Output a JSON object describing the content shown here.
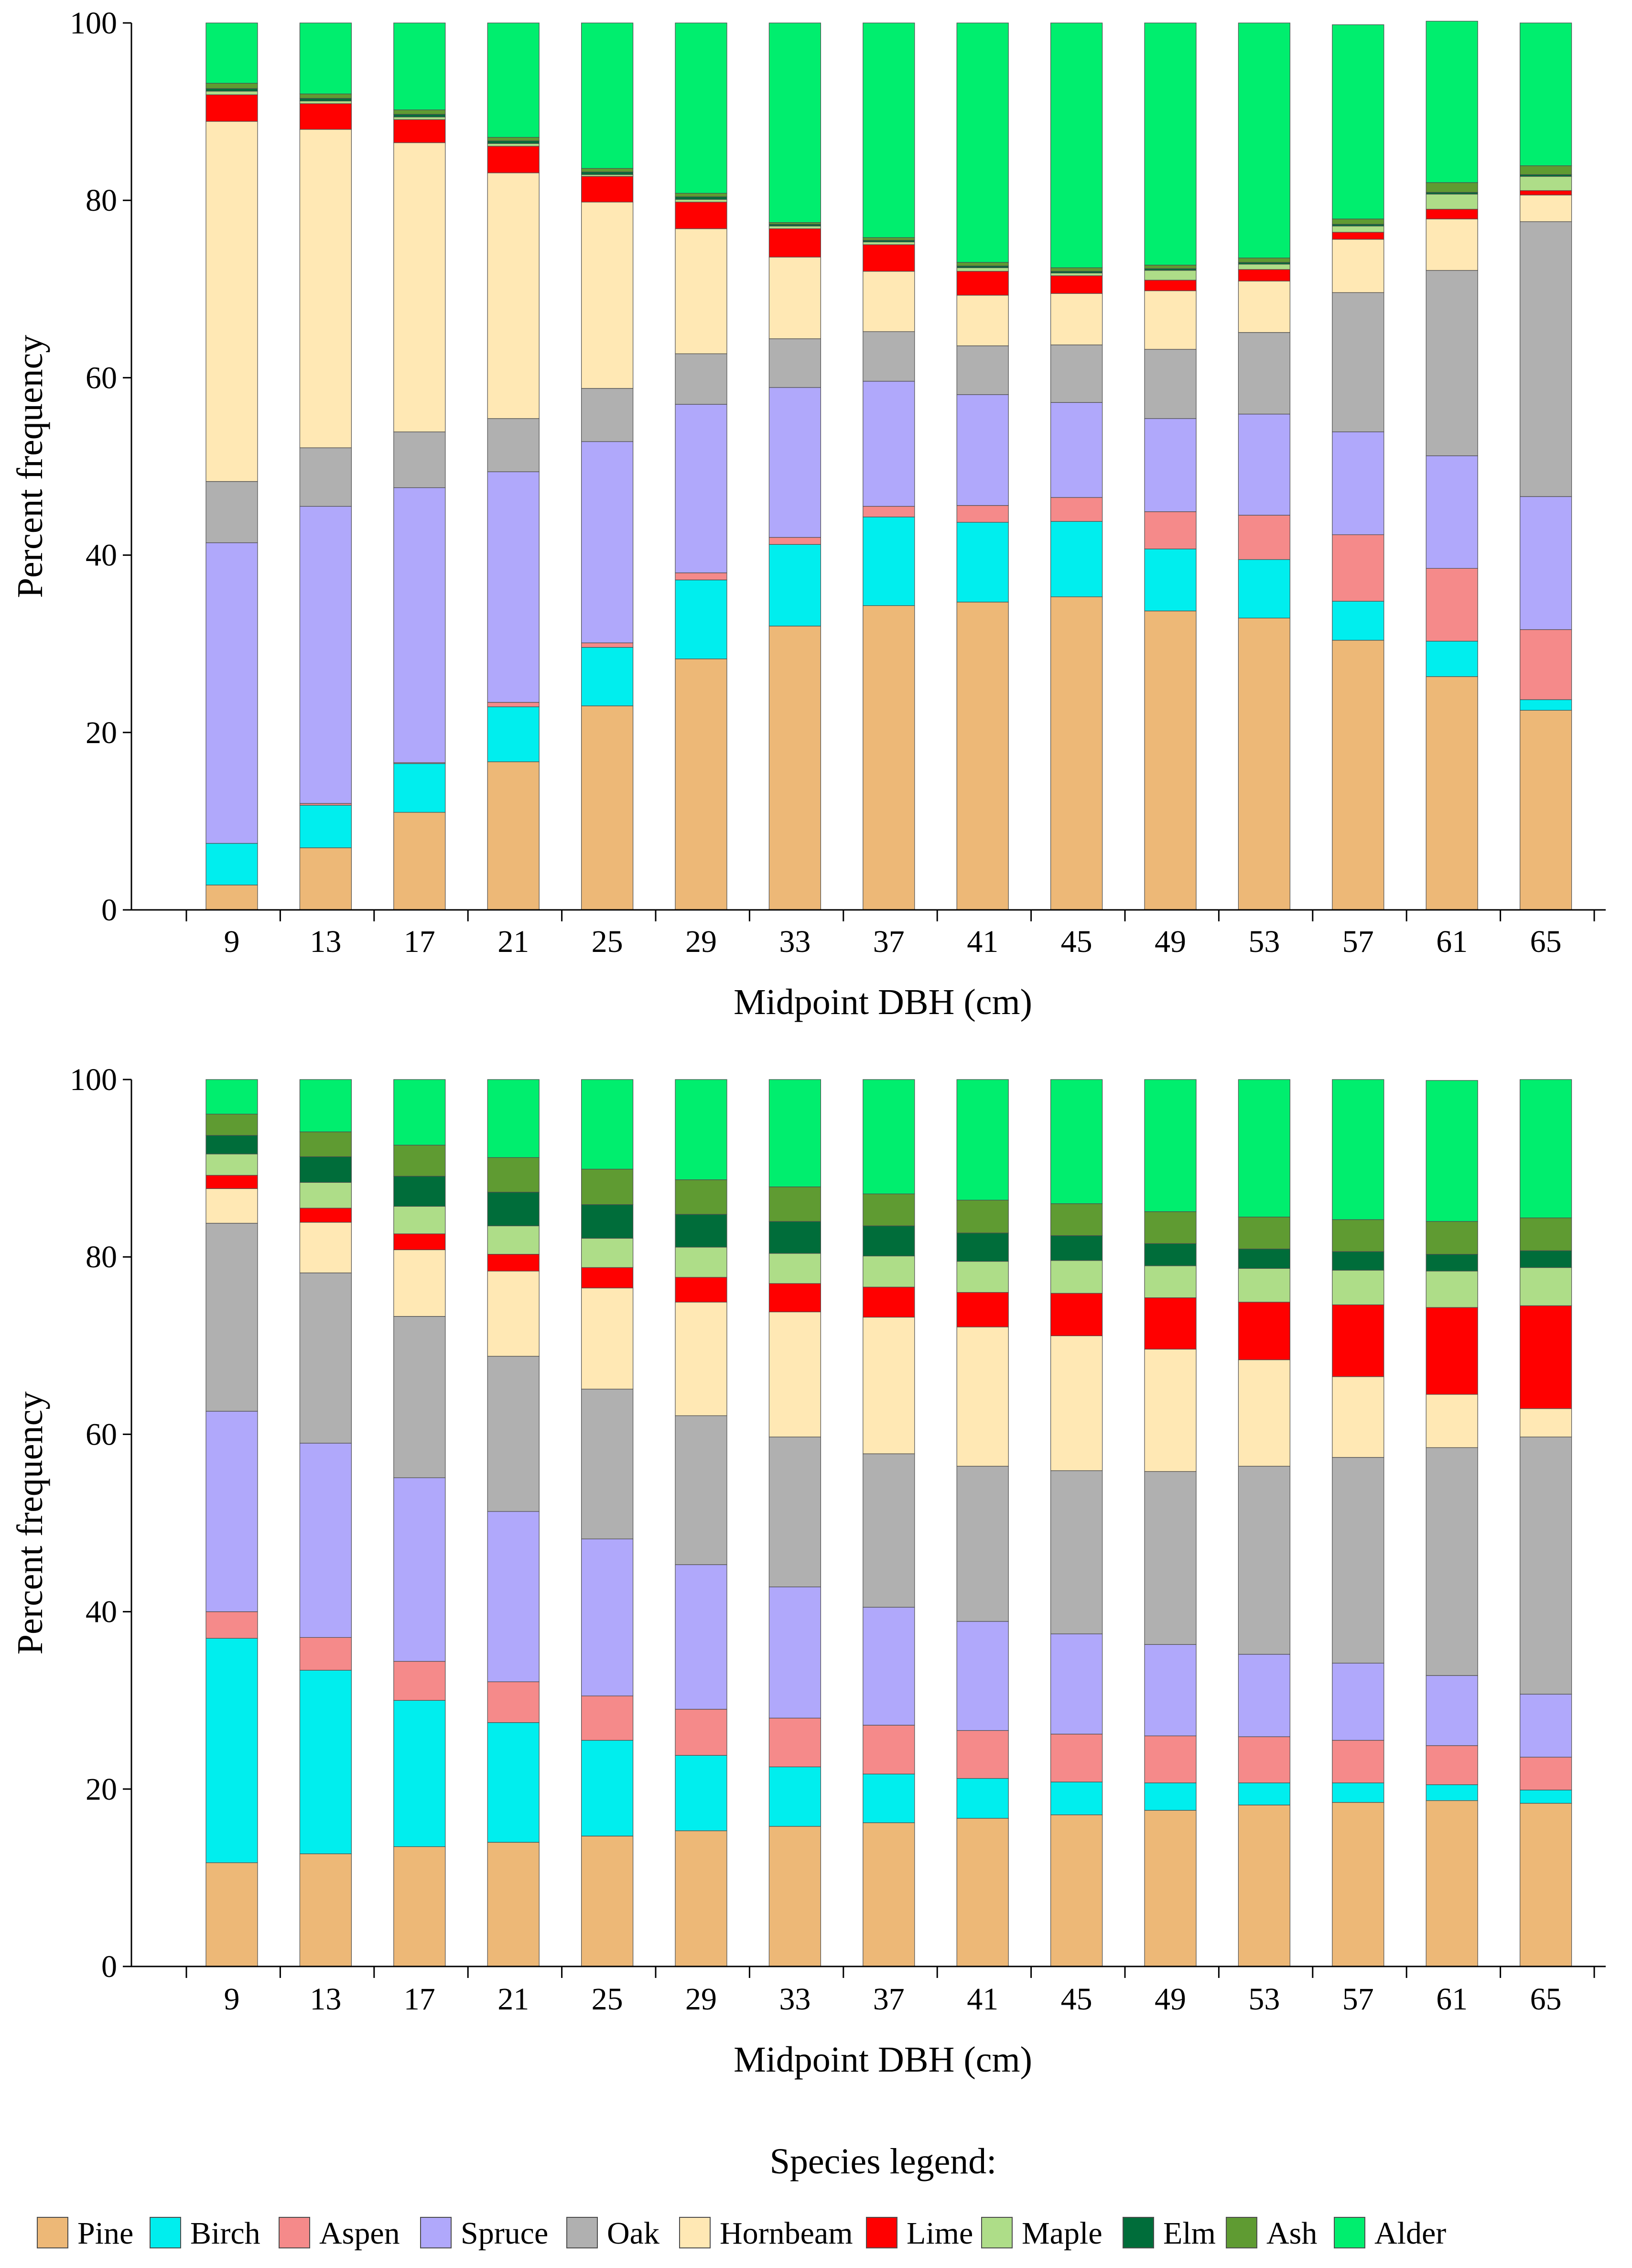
{
  "species": [
    {
      "name": "Pine",
      "color": "#EDB877"
    },
    {
      "name": "Birch",
      "color": "#00EEEE"
    },
    {
      "name": "Aspen",
      "color": "#F58A8A"
    },
    {
      "name": "Spruce",
      "color": "#B0A8FB"
    },
    {
      "name": "Oak",
      "color": "#B0B0B0"
    },
    {
      "name": "Hornbeam",
      "color": "#FFE8B4"
    },
    {
      "name": "Lime",
      "color": "#FF0000"
    },
    {
      "name": "Maple",
      "color": "#AEDD88"
    },
    {
      "name": "Elm",
      "color": "#006D3A"
    },
    {
      "name": "Ash",
      "color": "#5F9B32"
    },
    {
      "name": "Alder",
      "color": "#00EE6E"
    }
  ],
  "legend": {
    "title": "Species legend:"
  },
  "chart_data": [
    {
      "type": "bar",
      "stacked": true,
      "title": "",
      "xlabel": "Midpoint DBH (cm)",
      "ylabel": "Percent frequency",
      "ylim": [
        0,
        100
      ],
      "yticks": [
        "0",
        "20",
        "40",
        "60",
        "80",
        "100"
      ],
      "categories": [
        "9",
        "13",
        "17",
        "21",
        "25",
        "29",
        "33",
        "37",
        "41",
        "45",
        "49",
        "53",
        "57",
        "61",
        "65"
      ],
      "series": [
        {
          "name": "Pine",
          "values": [
            2.8,
            7.0,
            11.0,
            16.7,
            23.0,
            28.3,
            32.0,
            34.3,
            34.7,
            35.3,
            33.7,
            32.9,
            30.4,
            26.3,
            22.5
          ]
        },
        {
          "name": "Birch",
          "values": [
            4.7,
            4.8,
            5.5,
            6.2,
            6.6,
            8.9,
            9.2,
            10.0,
            9.0,
            8.5,
            7.0,
            6.6,
            4.4,
            4.0,
            1.2
          ]
        },
        {
          "name": "Aspen",
          "values": [
            0.0,
            0.2,
            0.1,
            0.5,
            0.5,
            0.8,
            0.8,
            1.2,
            1.9,
            2.7,
            4.2,
            5.0,
            7.5,
            8.2,
            7.9
          ]
        },
        {
          "name": "Spruce",
          "values": [
            33.9,
            33.5,
            31.0,
            26.0,
            22.7,
            19.0,
            16.9,
            14.1,
            12.5,
            10.7,
            10.5,
            11.4,
            11.6,
            12.7,
            15.0
          ]
        },
        {
          "name": "Oak",
          "values": [
            6.9,
            6.6,
            6.3,
            6.0,
            6.0,
            5.7,
            5.5,
            5.6,
            5.5,
            6.5,
            7.8,
            9.2,
            15.7,
            20.9,
            31.0
          ]
        },
        {
          "name": "Hornbeam",
          "values": [
            40.6,
            35.9,
            32.6,
            27.7,
            21.0,
            14.1,
            9.2,
            6.8,
            5.7,
            5.8,
            6.6,
            5.8,
            6.0,
            5.8,
            3.0
          ]
        },
        {
          "name": "Lime",
          "values": [
            3.0,
            2.9,
            2.6,
            3.0,
            2.9,
            3.0,
            3.2,
            3.0,
            2.7,
            2.0,
            1.2,
            1.3,
            0.8,
            1.1,
            0.5
          ]
        },
        {
          "name": "Maple",
          "values": [
            0.4,
            0.3,
            0.3,
            0.3,
            0.2,
            0.3,
            0.3,
            0.3,
            0.4,
            0.3,
            1.1,
            0.6,
            0.7,
            1.7,
            1.6
          ]
        },
        {
          "name": "Elm",
          "values": [
            0.3,
            0.3,
            0.3,
            0.3,
            0.3,
            0.3,
            0.2,
            0.2,
            0.2,
            0.2,
            0.2,
            0.2,
            0.2,
            0.2,
            0.2
          ]
        },
        {
          "name": "Ash",
          "values": [
            0.6,
            0.5,
            0.5,
            0.4,
            0.4,
            0.4,
            0.2,
            0.3,
            0.4,
            0.4,
            0.4,
            0.5,
            0.6,
            1.1,
            1.0
          ]
        },
        {
          "name": "Alder",
          "values": [
            6.8,
            8.0,
            9.8,
            12.9,
            16.4,
            19.2,
            22.5,
            24.2,
            27.0,
            27.6,
            27.3,
            26.5,
            21.9,
            18.2,
            16.1
          ]
        }
      ]
    },
    {
      "type": "bar",
      "stacked": true,
      "title": "",
      "xlabel": "Midpoint DBH (cm)",
      "ylabel": "Percent frequency",
      "ylim": [
        0,
        100
      ],
      "yticks": [
        "0",
        "20",
        "40",
        "60",
        "80",
        "100"
      ],
      "categories": [
        "9",
        "13",
        "17",
        "21",
        "25",
        "29",
        "33",
        "37",
        "41",
        "45",
        "49",
        "53",
        "57",
        "61",
        "65"
      ],
      "series": [
        {
          "name": "Pine",
          "values": [
            11.7,
            12.7,
            13.5,
            14.0,
            14.7,
            15.3,
            15.8,
            16.2,
            16.7,
            17.1,
            17.6,
            18.2,
            18.5,
            18.7,
            18.4
          ]
        },
        {
          "name": "Birch",
          "values": [
            25.3,
            20.7,
            16.5,
            13.5,
            10.8,
            8.5,
            6.7,
            5.5,
            4.5,
            3.7,
            3.1,
            2.5,
            2.2,
            1.8,
            1.5
          ]
        },
        {
          "name": "Aspen",
          "values": [
            3.0,
            3.7,
            4.4,
            4.6,
            5.0,
            5.2,
            5.5,
            5.5,
            5.4,
            5.4,
            5.3,
            5.2,
            4.8,
            4.4,
            3.7
          ]
        },
        {
          "name": "Spruce",
          "values": [
            22.6,
            21.9,
            20.7,
            19.2,
            17.7,
            16.3,
            14.8,
            13.3,
            12.3,
            11.3,
            10.3,
            9.3,
            8.7,
            7.9,
            7.1
          ]
        },
        {
          "name": "Oak",
          "values": [
            21.2,
            19.2,
            18.2,
            17.5,
            16.9,
            16.8,
            16.9,
            17.3,
            17.5,
            18.4,
            19.5,
            21.2,
            23.2,
            25.7,
            29.0
          ]
        },
        {
          "name": "Hornbeam",
          "values": [
            3.9,
            5.7,
            7.5,
            9.6,
            11.4,
            12.8,
            14.1,
            15.4,
            15.7,
            15.2,
            13.8,
            12.0,
            9.1,
            6.0,
            3.2
          ]
        },
        {
          "name": "Lime",
          "values": [
            1.5,
            1.6,
            1.8,
            1.9,
            2.3,
            2.8,
            3.2,
            3.4,
            3.9,
            4.8,
            5.8,
            6.5,
            8.1,
            9.8,
            11.6
          ]
        },
        {
          "name": "Maple",
          "values": [
            2.4,
            2.9,
            3.1,
            3.2,
            3.3,
            3.4,
            3.4,
            3.5,
            3.5,
            3.7,
            3.6,
            3.8,
            3.9,
            4.1,
            4.3
          ]
        },
        {
          "name": "Elm",
          "values": [
            2.1,
            2.9,
            3.4,
            3.8,
            3.8,
            3.7,
            3.6,
            3.4,
            3.2,
            2.8,
            2.5,
            2.2,
            2.1,
            1.9,
            1.9
          ]
        },
        {
          "name": "Ash",
          "values": [
            2.4,
            2.8,
            3.5,
            3.9,
            4.0,
            3.9,
            3.9,
            3.6,
            3.7,
            3.6,
            3.6,
            3.6,
            3.6,
            3.7,
            3.7
          ]
        },
        {
          "name": "Alder",
          "values": [
            3.9,
            5.9,
            7.4,
            8.8,
            10.1,
            11.3,
            12.1,
            12.9,
            13.6,
            14.0,
            14.9,
            15.5,
            15.8,
            15.9,
            15.6
          ]
        }
      ]
    }
  ]
}
